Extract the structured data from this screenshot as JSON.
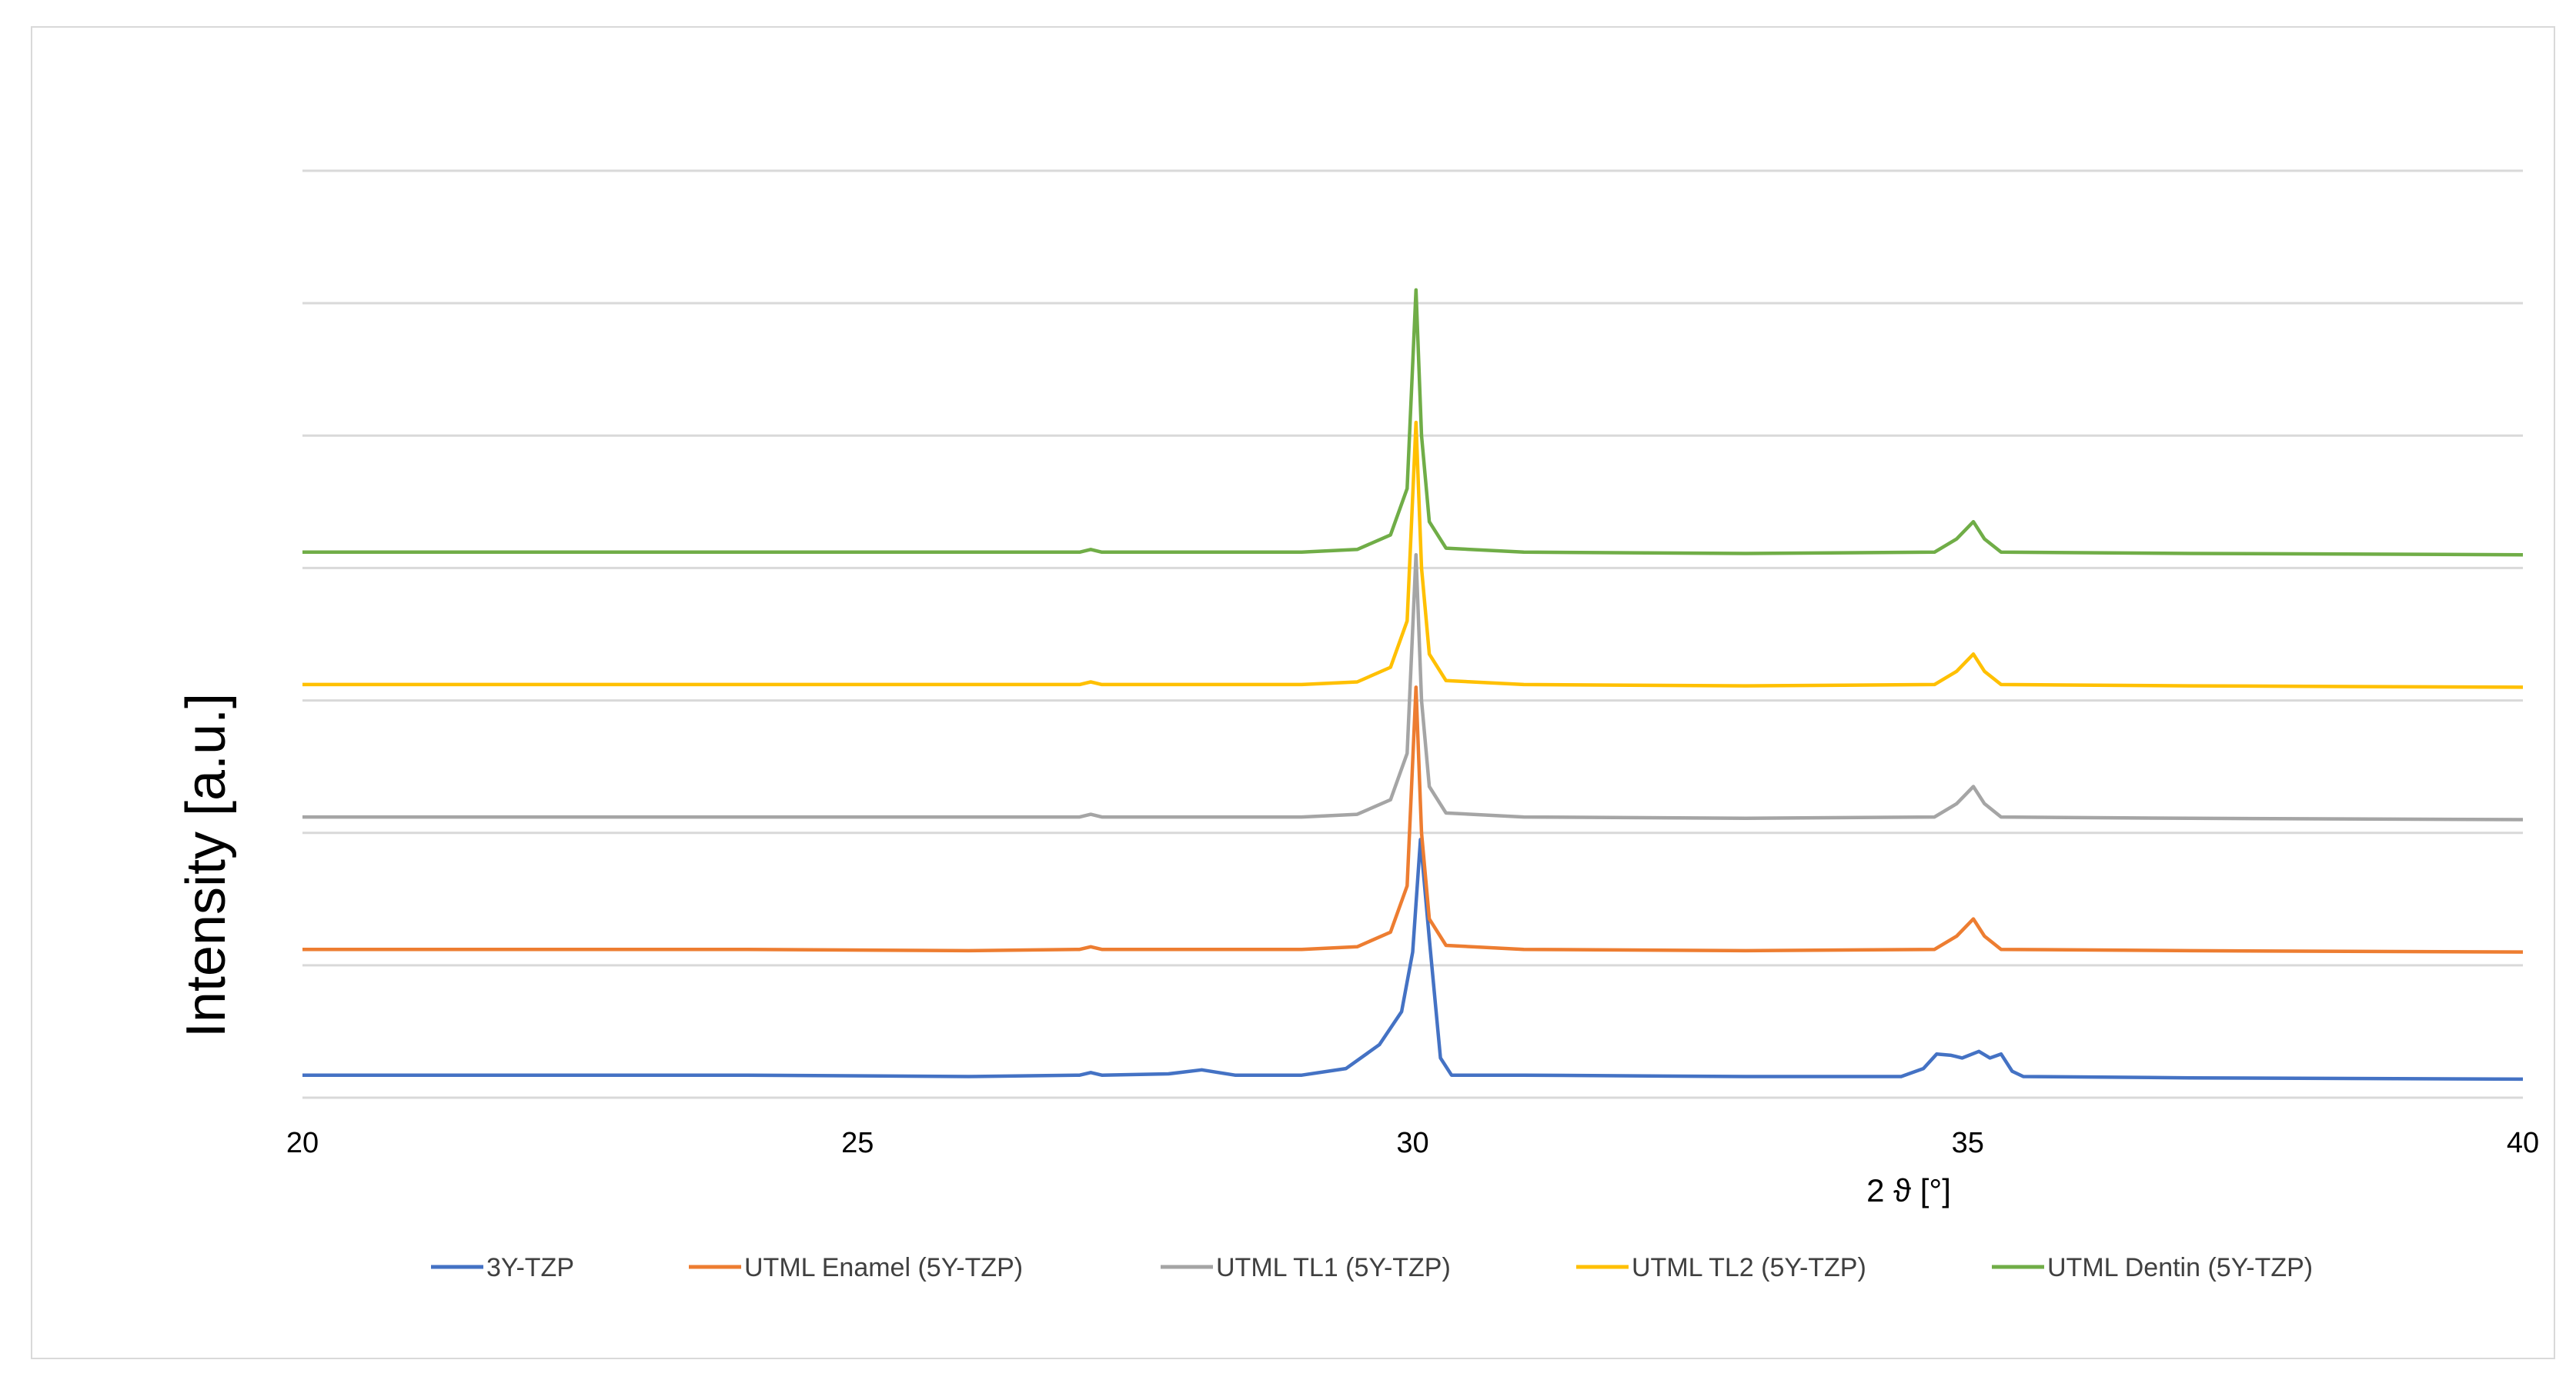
{
  "chart_data": {
    "type": "line",
    "title": "",
    "xlabel": "2 ϑ  [°]",
    "ylabel": "Intensity [a.u.]",
    "xlim": [
      20,
      40
    ],
    "ylim": [
      0,
      7
    ],
    "x_ticks": [
      "20",
      "25",
      "30",
      "35",
      "40"
    ],
    "grid": true,
    "legend_position": "bottom",
    "series": [
      {
        "name": "3Y-TZP",
        "color": "#4472C4",
        "points": [
          [
            20,
            0.17
          ],
          [
            22,
            0.17
          ],
          [
            24,
            0.17
          ],
          [
            26,
            0.16
          ],
          [
            27,
            0.17
          ],
          [
            27.1,
            0.19
          ],
          [
            27.2,
            0.17
          ],
          [
            27.8,
            0.18
          ],
          [
            28.1,
            0.21
          ],
          [
            28.4,
            0.17
          ],
          [
            29,
            0.17
          ],
          [
            29.4,
            0.22
          ],
          [
            29.7,
            0.4
          ],
          [
            29.9,
            0.65
          ],
          [
            30.0,
            1.1
          ],
          [
            30.07,
            1.95
          ],
          [
            30.15,
            1.2
          ],
          [
            30.25,
            0.3
          ],
          [
            30.35,
            0.17
          ],
          [
            31,
            0.17
          ],
          [
            33,
            0.16
          ],
          [
            34.4,
            0.16
          ],
          [
            34.6,
            0.22
          ],
          [
            34.72,
            0.33
          ],
          [
            34.85,
            0.32
          ],
          [
            34.95,
            0.3
          ],
          [
            35.1,
            0.35
          ],
          [
            35.2,
            0.3
          ],
          [
            35.3,
            0.33
          ],
          [
            35.4,
            0.2
          ],
          [
            35.5,
            0.16
          ],
          [
            37,
            0.15
          ],
          [
            40,
            0.14
          ]
        ]
      },
      {
        "name": "UTML Enamel (5Y-TZP)",
        "color": "#ED7D31",
        "points": [
          [
            20,
            1.12
          ],
          [
            22,
            1.12
          ],
          [
            24,
            1.12
          ],
          [
            26,
            1.11
          ],
          [
            27,
            1.12
          ],
          [
            27.1,
            1.14
          ],
          [
            27.2,
            1.12
          ],
          [
            29,
            1.12
          ],
          [
            29.5,
            1.14
          ],
          [
            29.8,
            1.25
          ],
          [
            29.95,
            1.6
          ],
          [
            30.03,
            3.1
          ],
          [
            30.08,
            2.0
          ],
          [
            30.15,
            1.35
          ],
          [
            30.3,
            1.15
          ],
          [
            31,
            1.12
          ],
          [
            33,
            1.11
          ],
          [
            34.7,
            1.12
          ],
          [
            34.9,
            1.22
          ],
          [
            35.05,
            1.35
          ],
          [
            35.15,
            1.22
          ],
          [
            35.3,
            1.12
          ],
          [
            37,
            1.11
          ],
          [
            40,
            1.1
          ]
        ]
      },
      {
        "name": "UTML TL1 (5Y-TZP)",
        "color": "#A5A5A5",
        "points": [
          [
            20,
            2.12
          ],
          [
            22,
            2.12
          ],
          [
            24,
            2.12
          ],
          [
            26,
            2.12
          ],
          [
            27,
            2.12
          ],
          [
            27.1,
            2.14
          ],
          [
            27.2,
            2.12
          ],
          [
            29,
            2.12
          ],
          [
            29.5,
            2.14
          ],
          [
            29.8,
            2.25
          ],
          [
            29.95,
            2.6
          ],
          [
            30.03,
            4.1
          ],
          [
            30.08,
            3.0
          ],
          [
            30.15,
            2.35
          ],
          [
            30.3,
            2.15
          ],
          [
            31,
            2.12
          ],
          [
            33,
            2.11
          ],
          [
            34.7,
            2.12
          ],
          [
            34.9,
            2.22
          ],
          [
            35.05,
            2.35
          ],
          [
            35.15,
            2.22
          ],
          [
            35.3,
            2.12
          ],
          [
            37,
            2.11
          ],
          [
            40,
            2.1
          ]
        ]
      },
      {
        "name": "UTML TL2 (5Y-TZP)",
        "color": "#FFC000",
        "points": [
          [
            20,
            3.12
          ],
          [
            22,
            3.12
          ],
          [
            24,
            3.12
          ],
          [
            26,
            3.12
          ],
          [
            27,
            3.12
          ],
          [
            27.1,
            3.14
          ],
          [
            27.2,
            3.12
          ],
          [
            29,
            3.12
          ],
          [
            29.5,
            3.14
          ],
          [
            29.8,
            3.25
          ],
          [
            29.95,
            3.6
          ],
          [
            30.03,
            5.1
          ],
          [
            30.08,
            4.0
          ],
          [
            30.15,
            3.35
          ],
          [
            30.3,
            3.15
          ],
          [
            31,
            3.12
          ],
          [
            33,
            3.11
          ],
          [
            34.7,
            3.12
          ],
          [
            34.9,
            3.22
          ],
          [
            35.05,
            3.35
          ],
          [
            35.15,
            3.22
          ],
          [
            35.3,
            3.12
          ],
          [
            37,
            3.11
          ],
          [
            40,
            3.1
          ]
        ]
      },
      {
        "name": "UTML Dentin (5Y-TZP)",
        "color": "#70AD47",
        "points": [
          [
            20,
            4.12
          ],
          [
            22,
            4.12
          ],
          [
            24,
            4.12
          ],
          [
            26,
            4.12
          ],
          [
            27,
            4.12
          ],
          [
            27.1,
            4.14
          ],
          [
            27.2,
            4.12
          ],
          [
            29,
            4.12
          ],
          [
            29.5,
            4.14
          ],
          [
            29.8,
            4.25
          ],
          [
            29.95,
            4.6
          ],
          [
            30.03,
            6.1
          ],
          [
            30.08,
            5.0
          ],
          [
            30.15,
            4.35
          ],
          [
            30.3,
            4.15
          ],
          [
            31,
            4.12
          ],
          [
            33,
            4.11
          ],
          [
            34.7,
            4.12
          ],
          [
            34.9,
            4.22
          ],
          [
            35.05,
            4.35
          ],
          [
            35.15,
            4.22
          ],
          [
            35.3,
            4.12
          ],
          [
            37,
            4.11
          ],
          [
            40,
            4.1
          ]
        ]
      }
    ]
  }
}
